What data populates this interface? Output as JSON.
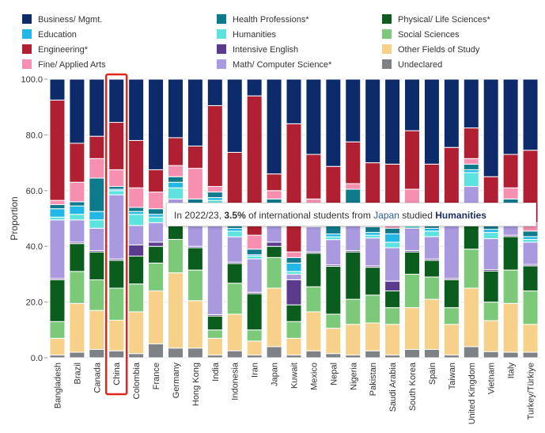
{
  "legend": [
    {
      "label": "Business/ Mgmt.",
      "color": "#0d2a6b"
    },
    {
      "label": "Health Professions*",
      "color": "#0f7a8c"
    },
    {
      "label": "Physical/ Life Sciences*",
      "color": "#0b5d1e"
    },
    {
      "label": "Education",
      "color": "#21b7e6"
    },
    {
      "label": "Humanities",
      "color": "#5de3de"
    },
    {
      "label": "Social Sciences",
      "color": "#7cc97a"
    },
    {
      "label": "Engineering*",
      "color": "#b01f32"
    },
    {
      "label": "Intensive English",
      "color": "#5a3b8c"
    },
    {
      "label": "Other Fields of Study",
      "color": "#f7d08a"
    },
    {
      "label": "Fine/ Applied Arts",
      "color": "#f790b0"
    },
    {
      "label": "Math/ Computer Science*",
      "color": "#a99ae0"
    },
    {
      "label": "Undeclared",
      "color": "#7e8186"
    }
  ],
  "tooltip": {
    "prefix": "In 2022/23, ",
    "value": "3.5%",
    "middle": " of international students from ",
    "country": "Japan",
    "studied": " studied ",
    "field": "Humanities"
  },
  "chart_data": {
    "type": "bar",
    "stacked": true,
    "ylabel": "Proportion",
    "ylim": [
      0,
      100
    ],
    "yticks": [
      "0.0",
      "20.0",
      "40.0",
      "60.0",
      "80.0",
      "100.0"
    ],
    "highlighted_category": "China",
    "hovered_segment": {
      "category": "Japan",
      "series": "Humanities",
      "value": 3.5
    },
    "categories": [
      "Bangladesh",
      "Brazil",
      "Canada",
      "China",
      "Colombia",
      "France",
      "Germany",
      "Hong Kong",
      "India",
      "Indonesia",
      "Iran",
      "Japan",
      "Kuwait",
      "Mexico",
      "Nepal",
      "Nigeria",
      "Pakistan",
      "Saudi Arabia",
      "South Korea",
      "Spain",
      "Taiwan",
      "United Kingdom",
      "Vietnam",
      "Italy",
      "Turkey/Türkiye"
    ],
    "series": [
      {
        "name": "Undeclared",
        "color": "#7e8186",
        "values": [
          1,
          2,
          3,
          2.5,
          1.5,
          5,
          3.5,
          3.5,
          1,
          2.5,
          1,
          4,
          1,
          2.5,
          1.5,
          1,
          2.5,
          1,
          3,
          3,
          1,
          4,
          2,
          2,
          2
        ]
      },
      {
        "name": "Other Fields of Study",
        "color": "#f7d08a",
        "values": [
          6,
          17.5,
          14,
          11,
          15,
          19,
          27,
          17,
          6,
          13,
          5,
          21,
          6,
          14,
          9,
          11,
          10,
          11,
          15,
          18,
          11,
          21,
          10,
          17.5,
          10
        ]
      },
      {
        "name": "Social Sciences",
        "color": "#7cc97a",
        "values": [
          6,
          11.5,
          11,
          11.5,
          10,
          10,
          12,
          11,
          3,
          11,
          4,
          11,
          6,
          9,
          5,
          9,
          10,
          6,
          12,
          8,
          6,
          14,
          6,
          12,
          12
        ]
      },
      {
        "name": "Physical/ Life Sciences*",
        "color": "#0b5d1e",
        "values": [
          15,
          10,
          10,
          10,
          10,
          6,
          8,
          8,
          5,
          7,
          13,
          4,
          6,
          12,
          17,
          17,
          10,
          6,
          8,
          6,
          10,
          12,
          10,
          12,
          9
        ]
      },
      {
        "name": "Intensive English",
        "color": "#5a3b8c",
        "values": [
          0.5,
          0.5,
          0.5,
          0.5,
          4,
          1.5,
          0.5,
          0.5,
          0.5,
          0.5,
          0.5,
          1.5,
          9,
          0.5,
          0.5,
          0.5,
          0.5,
          3.5,
          0.5,
          0.5,
          0.5,
          0.5,
          0.5,
          0.5,
          0.5
        ]
      },
      {
        "name": "Math/ Computer Science*",
        "color": "#a99ae0",
        "values": [
          21,
          8,
          8,
          23,
          7,
          7,
          6,
          9,
          40,
          9,
          12,
          7,
          2,
          9,
          9,
          12,
          10,
          12,
          8,
          8,
          20,
          10,
          10,
          8,
          8
        ]
      },
      {
        "name": "Humanities",
        "color": "#5de3de",
        "values": [
          1,
          2,
          3,
          1.5,
          4,
          2,
          4,
          3,
          1,
          2,
          1,
          3.5,
          1,
          2,
          1,
          1,
          1,
          2,
          1,
          2,
          1,
          5,
          2,
          2,
          1
        ]
      },
      {
        "name": "Education",
        "color": "#21b7e6",
        "values": [
          3,
          3,
          3,
          0.5,
          1,
          1,
          2,
          2,
          1,
          1,
          0.5,
          3,
          3,
          1,
          1,
          1,
          1,
          3,
          1,
          1,
          1,
          1,
          1,
          1,
          1
        ]
      },
      {
        "name": "Health Professions*",
        "color": "#0f7a8c",
        "values": [
          1.5,
          1.5,
          12,
          1,
          1.5,
          2,
          2,
          3,
          2,
          2,
          2,
          2,
          2,
          2,
          6,
          8,
          2,
          2,
          2,
          2,
          2,
          2,
          2,
          2,
          2
        ]
      },
      {
        "name": "Fine/ Applied Arts",
        "color": "#f790b0",
        "values": [
          1.5,
          7,
          7,
          6,
          7,
          6,
          4,
          11,
          2,
          3,
          5,
          3,
          2,
          5,
          2,
          2,
          2,
          3,
          10,
          3,
          3,
          2,
          3,
          4,
          3
        ]
      },
      {
        "name": "Engineering*",
        "color": "#b01f32",
        "values": [
          36,
          14,
          8,
          17,
          17,
          8,
          10,
          8,
          29,
          22,
          50,
          6,
          46,
          16,
          16,
          15,
          21,
          20,
          21,
          18,
          20,
          11,
          12,
          12,
          26
        ]
      },
      {
        "name": "Business/ Mgmt.",
        "color": "#0d2a6b",
        "values": [
          7.5,
          23,
          20.5,
          15.5,
          22,
          32.5,
          21,
          24,
          9.5,
          26,
          6,
          34,
          16,
          27,
          31,
          22.5,
          30,
          30.5,
          18.5,
          30.5,
          24.5,
          17.5,
          31.5,
          27,
          25.5
        ]
      }
    ]
  }
}
